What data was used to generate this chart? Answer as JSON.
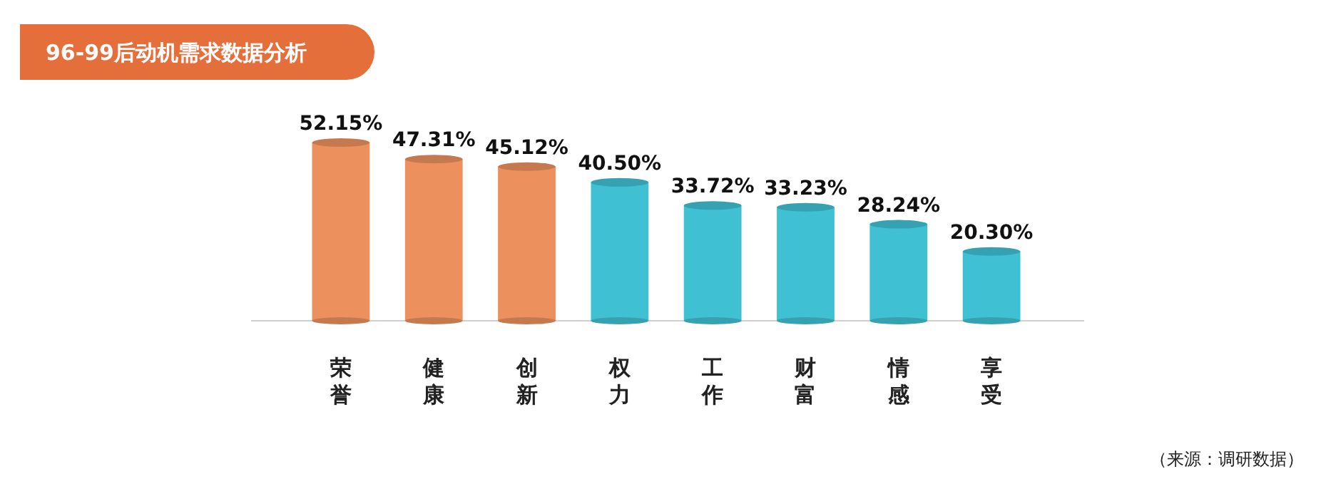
{
  "chart_data": {
    "type": "bar",
    "title": "96-99后动机需求数据分析",
    "categories": [
      "荣誉",
      "健康",
      "创新",
      "权力",
      "工作",
      "财富",
      "情感",
      "享受"
    ],
    "values": [
      52.15,
      47.31,
      45.12,
      40.5,
      33.72,
      33.23,
      28.24,
      20.3
    ],
    "value_labels": [
      "52.15%",
      "47.31%",
      "45.12%",
      "40.50%",
      "33.72%",
      "33.23%",
      "28.24%",
      "20.30%"
    ],
    "colors": [
      "#ec915d",
      "#ec915d",
      "#ec915d",
      "#3fc0d3",
      "#3fc0d3",
      "#3fc0d3",
      "#3fc0d3",
      "#3fc0d3"
    ],
    "annotations": [
      "（来源：调研数据）"
    ]
  }
}
